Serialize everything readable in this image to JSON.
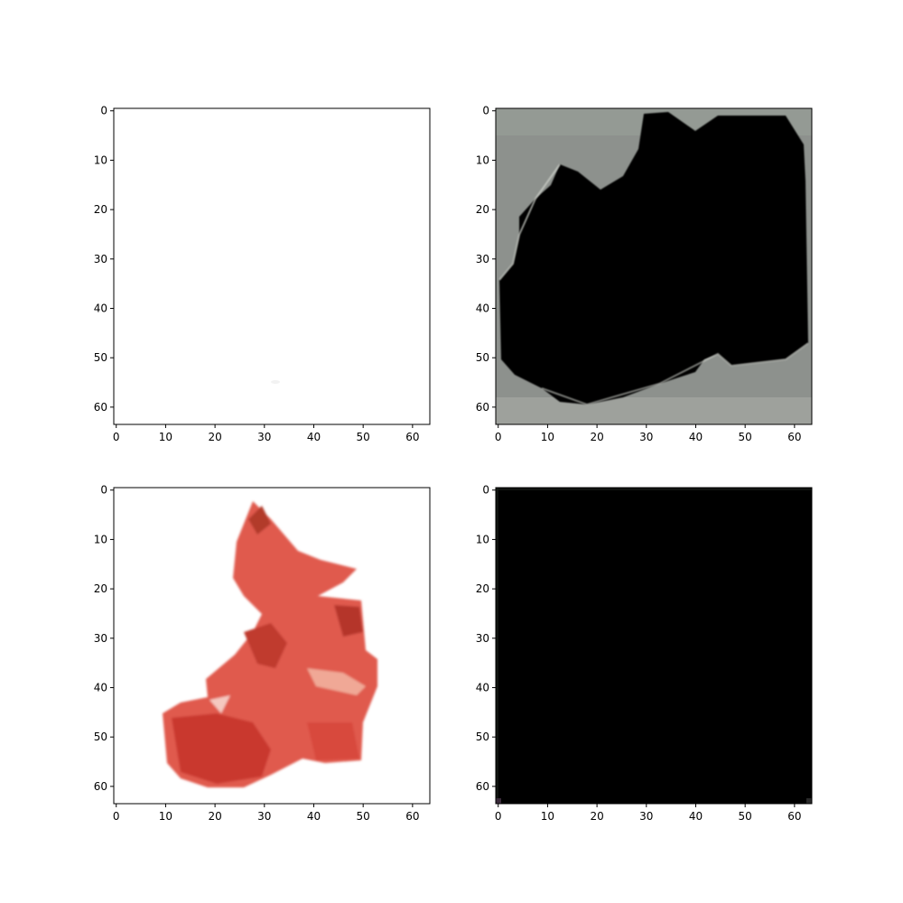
{
  "chart_data": [
    {
      "type": "image",
      "panel": "top-left",
      "description_colors": {
        "background": "#ffffff"
      },
      "image_extent": [
        0,
        63
      ],
      "xticks": [
        0,
        10,
        20,
        30,
        40,
        50,
        60
      ],
      "yticks": [
        0,
        10,
        20,
        30,
        40,
        50,
        60
      ],
      "xlim": [
        -0.5,
        63.5
      ],
      "ylim": [
        63.5,
        -0.5
      ]
    },
    {
      "type": "image",
      "panel": "top-right",
      "description_colors": {
        "background": "#8d918d",
        "foreground": "#000000"
      },
      "image_extent": [
        0,
        63
      ],
      "xticks": [
        0,
        10,
        20,
        30,
        40,
        50,
        60
      ],
      "yticks": [
        0,
        10,
        20,
        30,
        40,
        50,
        60
      ],
      "xlim": [
        -0.5,
        63.5
      ],
      "ylim": [
        63.5,
        -0.5
      ]
    },
    {
      "type": "image",
      "panel": "bottom-left",
      "description_colors": {
        "background": "#ffffff",
        "foreground": "#d8453c"
      },
      "image_extent": [
        0,
        63
      ],
      "xticks": [
        0,
        10,
        20,
        30,
        40,
        50,
        60
      ],
      "yticks": [
        0,
        10,
        20,
        30,
        40,
        50,
        60
      ],
      "xlim": [
        -0.5,
        63.5
      ],
      "ylim": [
        63.5,
        -0.5
      ]
    },
    {
      "type": "image",
      "panel": "bottom-right",
      "description_colors": {
        "background": "#000000"
      },
      "image_extent": [
        0,
        63
      ],
      "xticks": [
        0,
        10,
        20,
        30,
        40,
        50,
        60
      ],
      "yticks": [
        0,
        10,
        20,
        30,
        40,
        50,
        60
      ],
      "xlim": [
        -0.5,
        63.5
      ],
      "ylim": [
        63.5,
        -0.5
      ]
    }
  ]
}
